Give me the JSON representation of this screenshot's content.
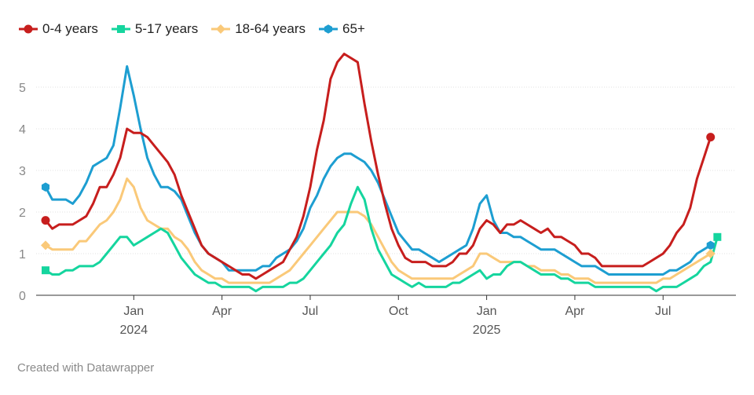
{
  "chart_data": {
    "type": "line",
    "title": "",
    "xlabel": "",
    "ylabel": "",
    "ylim": [
      0,
      5.7
    ],
    "yticks": [
      0,
      1,
      2,
      3,
      4,
      5
    ],
    "x_range_weeks": [
      0,
      100
    ],
    "xticks": [
      {
        "week": 13,
        "label": "Jan",
        "year": "2024"
      },
      {
        "week": 26,
        "label": "Apr",
        "year": ""
      },
      {
        "week": 39,
        "label": "Jul",
        "year": ""
      },
      {
        "week": 52,
        "label": "Oct",
        "year": ""
      },
      {
        "week": 65,
        "label": "Jan",
        "year": "2025"
      },
      {
        "week": 78,
        "label": "Apr",
        "year": ""
      },
      {
        "week": 91,
        "label": "Jul",
        "year": ""
      }
    ],
    "legend_position": "top-left",
    "series": [
      {
        "name": "0-4 years",
        "color": "#c71e1d",
        "marker": "circle",
        "values": [
          1.8,
          1.6,
          1.7,
          1.7,
          1.7,
          1.8,
          1.9,
          2.2,
          2.6,
          2.6,
          2.9,
          3.3,
          4.0,
          3.9,
          3.9,
          3.8,
          3.6,
          3.4,
          3.2,
          2.9,
          2.4,
          2.0,
          1.6,
          1.2,
          1.0,
          0.9,
          0.8,
          0.7,
          0.6,
          0.5,
          0.5,
          0.4,
          0.5,
          0.6,
          0.7,
          0.8,
          1.1,
          1.4,
          1.9,
          2.6,
          3.5,
          4.2,
          5.2,
          5.6,
          5.8,
          5.7,
          5.6,
          4.6,
          3.7,
          2.9,
          2.2,
          1.6,
          1.2,
          0.9,
          0.8,
          0.8,
          0.8,
          0.7,
          0.7,
          0.7,
          0.8,
          1.0,
          1.0,
          1.2,
          1.6,
          1.8,
          1.7,
          1.5,
          1.7,
          1.7,
          1.8,
          1.7,
          1.6,
          1.5,
          1.6,
          1.4,
          1.4,
          1.3,
          1.2,
          1.0,
          1.0,
          0.9,
          0.7,
          0.7,
          0.7,
          0.7,
          0.7,
          0.7,
          0.7,
          0.8,
          0.9,
          1.0,
          1.2,
          1.5,
          1.7,
          2.1,
          2.8,
          3.3,
          3.8
        ]
      },
      {
        "name": "5-17 years",
        "color": "#15d59e",
        "marker": "square",
        "values": [
          0.6,
          0.5,
          0.5,
          0.6,
          0.6,
          0.7,
          0.7,
          0.7,
          0.8,
          1.0,
          1.2,
          1.4,
          1.4,
          1.2,
          1.3,
          1.4,
          1.5,
          1.6,
          1.5,
          1.2,
          0.9,
          0.7,
          0.5,
          0.4,
          0.3,
          0.3,
          0.2,
          0.2,
          0.2,
          0.2,
          0.2,
          0.1,
          0.2,
          0.2,
          0.2,
          0.2,
          0.3,
          0.3,
          0.4,
          0.6,
          0.8,
          1.0,
          1.2,
          1.5,
          1.7,
          2.2,
          2.6,
          2.3,
          1.6,
          1.1,
          0.8,
          0.5,
          0.4,
          0.3,
          0.2,
          0.3,
          0.2,
          0.2,
          0.2,
          0.2,
          0.3,
          0.3,
          0.4,
          0.5,
          0.6,
          0.4,
          0.5,
          0.5,
          0.7,
          0.8,
          0.8,
          0.7,
          0.6,
          0.5,
          0.5,
          0.5,
          0.4,
          0.4,
          0.3,
          0.3,
          0.3,
          0.2,
          0.2,
          0.2,
          0.2,
          0.2,
          0.2,
          0.2,
          0.2,
          0.2,
          0.1,
          0.2,
          0.2,
          0.2,
          0.3,
          0.4,
          0.5,
          0.7,
          0.8,
          1.4
        ]
      },
      {
        "name": "18-64 years",
        "color": "#fac979",
        "marker": "diamond",
        "values": [
          1.2,
          1.1,
          1.1,
          1.1,
          1.1,
          1.3,
          1.3,
          1.5,
          1.7,
          1.8,
          2.0,
          2.3,
          2.8,
          2.6,
          2.1,
          1.8,
          1.7,
          1.6,
          1.6,
          1.4,
          1.3,
          1.1,
          0.8,
          0.6,
          0.5,
          0.4,
          0.4,
          0.3,
          0.3,
          0.3,
          0.3,
          0.3,
          0.3,
          0.3,
          0.4,
          0.5,
          0.6,
          0.8,
          1.0,
          1.2,
          1.4,
          1.6,
          1.8,
          2.0,
          2.0,
          2.0,
          2.0,
          1.9,
          1.7,
          1.4,
          1.1,
          0.8,
          0.6,
          0.5,
          0.4,
          0.4,
          0.4,
          0.4,
          0.4,
          0.4,
          0.4,
          0.5,
          0.6,
          0.7,
          1.0,
          1.0,
          0.9,
          0.8,
          0.8,
          0.8,
          0.8,
          0.7,
          0.7,
          0.6,
          0.6,
          0.6,
          0.5,
          0.5,
          0.4,
          0.4,
          0.4,
          0.3,
          0.3,
          0.3,
          0.3,
          0.3,
          0.3,
          0.3,
          0.3,
          0.3,
          0.3,
          0.4,
          0.4,
          0.5,
          0.6,
          0.7,
          0.8,
          0.9,
          1.0
        ]
      },
      {
        "name": "65+",
        "color": "#1d9ed1",
        "marker": "hexagon",
        "values": [
          2.6,
          2.3,
          2.3,
          2.3,
          2.2,
          2.4,
          2.7,
          3.1,
          3.2,
          3.3,
          3.6,
          4.5,
          5.5,
          4.8,
          4.0,
          3.3,
          2.9,
          2.6,
          2.6,
          2.5,
          2.3,
          1.9,
          1.5,
          1.2,
          1.0,
          0.9,
          0.8,
          0.6,
          0.6,
          0.6,
          0.6,
          0.6,
          0.7,
          0.7,
          0.9,
          1.0,
          1.1,
          1.3,
          1.6,
          2.1,
          2.4,
          2.8,
          3.1,
          3.3,
          3.4,
          3.4,
          3.3,
          3.2,
          3.0,
          2.7,
          2.3,
          1.9,
          1.5,
          1.3,
          1.1,
          1.1,
          1.0,
          0.9,
          0.8,
          0.9,
          1.0,
          1.1,
          1.2,
          1.6,
          2.2,
          2.4,
          1.8,
          1.5,
          1.5,
          1.4,
          1.4,
          1.3,
          1.2,
          1.1,
          1.1,
          1.1,
          1.0,
          0.9,
          0.8,
          0.7,
          0.7,
          0.7,
          0.6,
          0.5,
          0.5,
          0.5,
          0.5,
          0.5,
          0.5,
          0.5,
          0.5,
          0.5,
          0.6,
          0.6,
          0.7,
          0.8,
          1.0,
          1.1,
          1.2
        ]
      }
    ]
  },
  "footer": {
    "credit": "Created with Datawrapper"
  }
}
